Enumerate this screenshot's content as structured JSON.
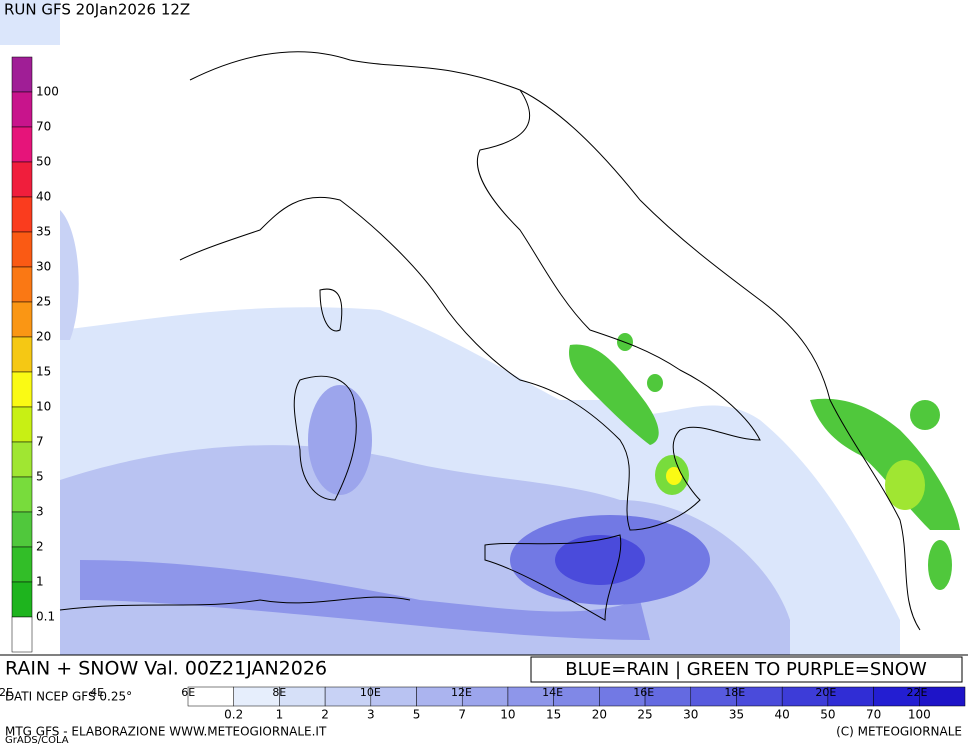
{
  "header": {
    "title": "RUN GFS 20Jan2026 12Z"
  },
  "legend": {
    "labels": [
      "100",
      "70",
      "50",
      "40",
      "35",
      "30",
      "25",
      "20",
      "15",
      "10",
      "7",
      "5",
      "3",
      "2",
      "1",
      "0.1"
    ],
    "colors": [
      "#a01e96",
      "#c8148c",
      "#e6147a",
      "#f01e3c",
      "#fa3c1e",
      "#fa5a14",
      "#fa7814",
      "#fa9614",
      "#f5c814",
      "#fafa14",
      "#c8f014",
      "#a0e632",
      "#78dc3c",
      "#50c83c",
      "#32be28",
      "#1eb41e",
      "#ffffff"
    ]
  },
  "footer": {
    "field": "RAIN + SNOW Val. 00Z21JAN2026",
    "key": "BLUE=RAIN | GREEN TO PURPLE=SNOW",
    "source": "DATI NCEP GFS 0.25°",
    "longitudes": [
      "2E",
      "4E",
      "6E",
      "8E",
      "10E",
      "12E",
      "14E",
      "16E",
      "18E",
      "20E",
      "22E"
    ],
    "scale": {
      "labels": [
        "0.2",
        "1",
        "2",
        "3",
        "5",
        "7",
        "10",
        "15",
        "20",
        "25",
        "30",
        "35",
        "40",
        "50",
        "70",
        "100"
      ],
      "colors": [
        "#ffffff",
        "#e6eefc",
        "#d6e0f8",
        "#c8d2f5",
        "#b9c3f2",
        "#abb4ef",
        "#9ca5ec",
        "#8e96ea",
        "#8088e7",
        "#7279e4",
        "#646ae1",
        "#575ade",
        "#4a4bdb",
        "#3d3cd8",
        "#302dd5",
        "#231ed2",
        "#1e14c8"
      ]
    },
    "credit": "MTG GFS - ELABORAZIONE WWW.METEOGIORNALE.IT",
    "software": "GrADS/COLA",
    "copyright": "(C) METEOGIORNALE"
  }
}
